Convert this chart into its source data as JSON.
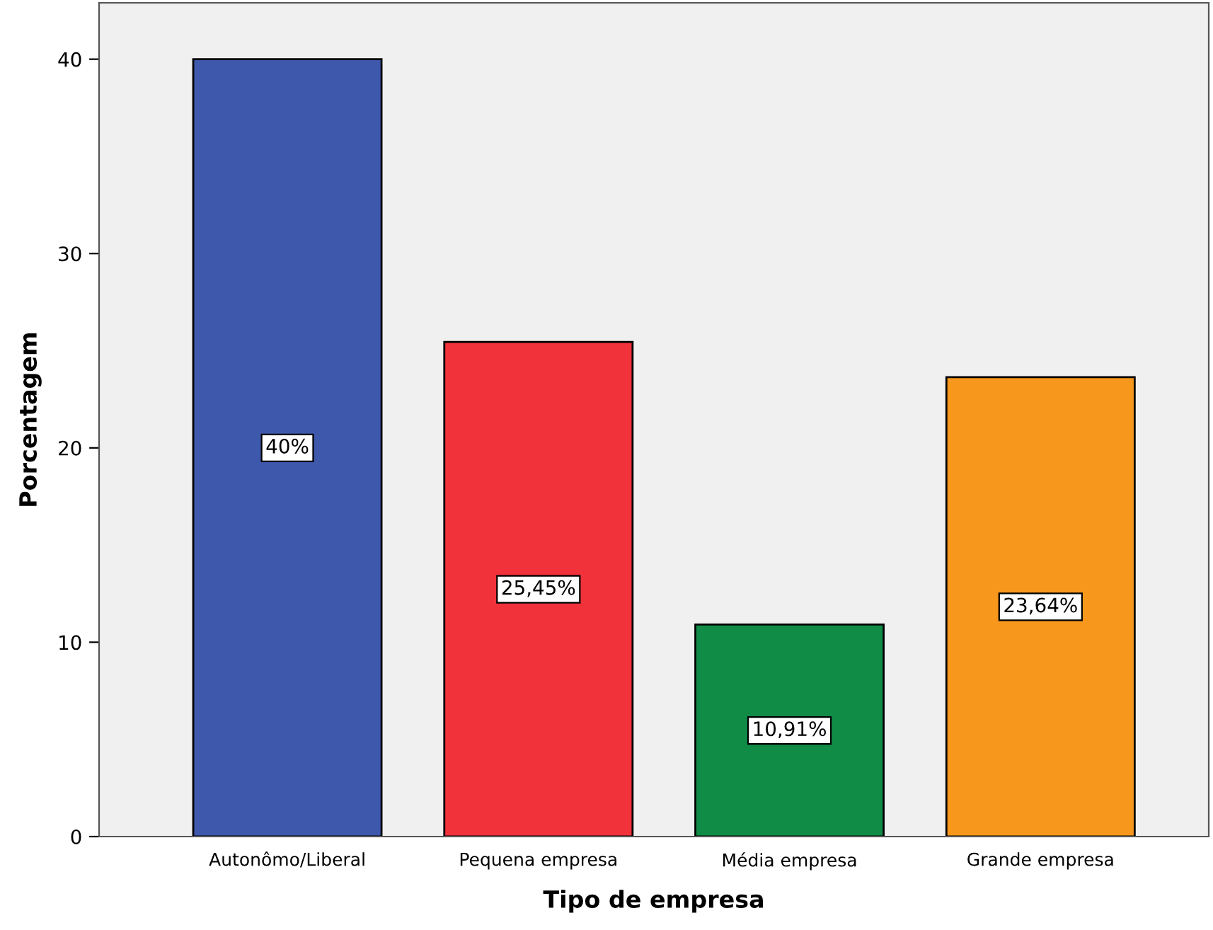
{
  "chart_data": {
    "type": "bar",
    "xlabel": "Tipo de empresa",
    "ylabel": "Porcentagem",
    "categories": [
      "Autonômo/Liberal",
      "Pequena empresa",
      "Média empresa",
      "Grande empresa"
    ],
    "values": [
      40,
      25.45,
      10.91,
      23.64
    ],
    "colors": [
      "#3e58ac",
      "#f1323a",
      "#108c47",
      "#f7981d"
    ],
    "value_labels": [
      "40%",
      "25,45%",
      "10,91%",
      "23,64%"
    ],
    "ylim": [
      0,
      42.9
    ],
    "yticks": [
      0,
      10,
      20,
      30,
      40
    ],
    "grid": false
  }
}
